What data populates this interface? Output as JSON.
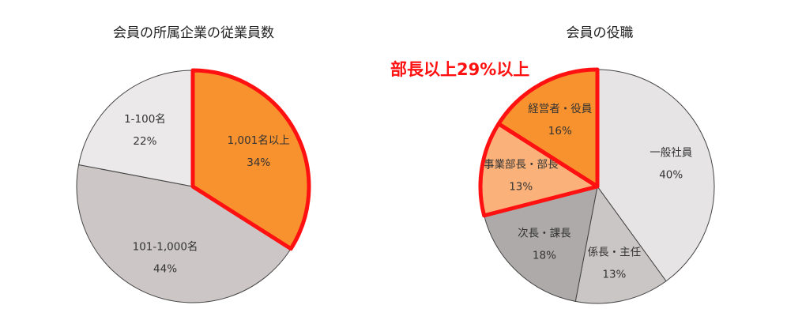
{
  "chart_data": [
    {
      "type": "pie",
      "title": "会員の所属企業の従業員数",
      "categories": [
        "1,001名以上",
        "101-1,000名",
        "1-100名"
      ],
      "values": [
        34,
        44,
        22
      ],
      "value_labels": [
        "34%",
        "44%",
        "22%"
      ],
      "colors": [
        "#f7922e",
        "#ccc6c6",
        "#ebe9e9"
      ],
      "highlighted": [
        "1,001名以上"
      ],
      "highlight_color": "#ff1111",
      "start": "top",
      "direction": "clockwise"
    },
    {
      "type": "pie",
      "title": "会員の役職",
      "categories": [
        "一般社員",
        "係長・主任",
        "次長・課長",
        "事業部長・部長",
        "経営者・役員"
      ],
      "values": [
        40,
        13,
        18,
        13,
        16
      ],
      "value_labels": [
        "40%",
        "13%",
        "18%",
        "13%",
        "16%"
      ],
      "colors": [
        "#e6e4e4",
        "#cbc6c6",
        "#aeaaaa",
        "#fbb27a",
        "#f7922e"
      ],
      "highlighted": [
        "事業部長・部長",
        "経営者・役員"
      ],
      "highlight_color": "#ff1111",
      "annotation": "部長以上29%以上",
      "start": "top",
      "direction": "clockwise"
    }
  ]
}
